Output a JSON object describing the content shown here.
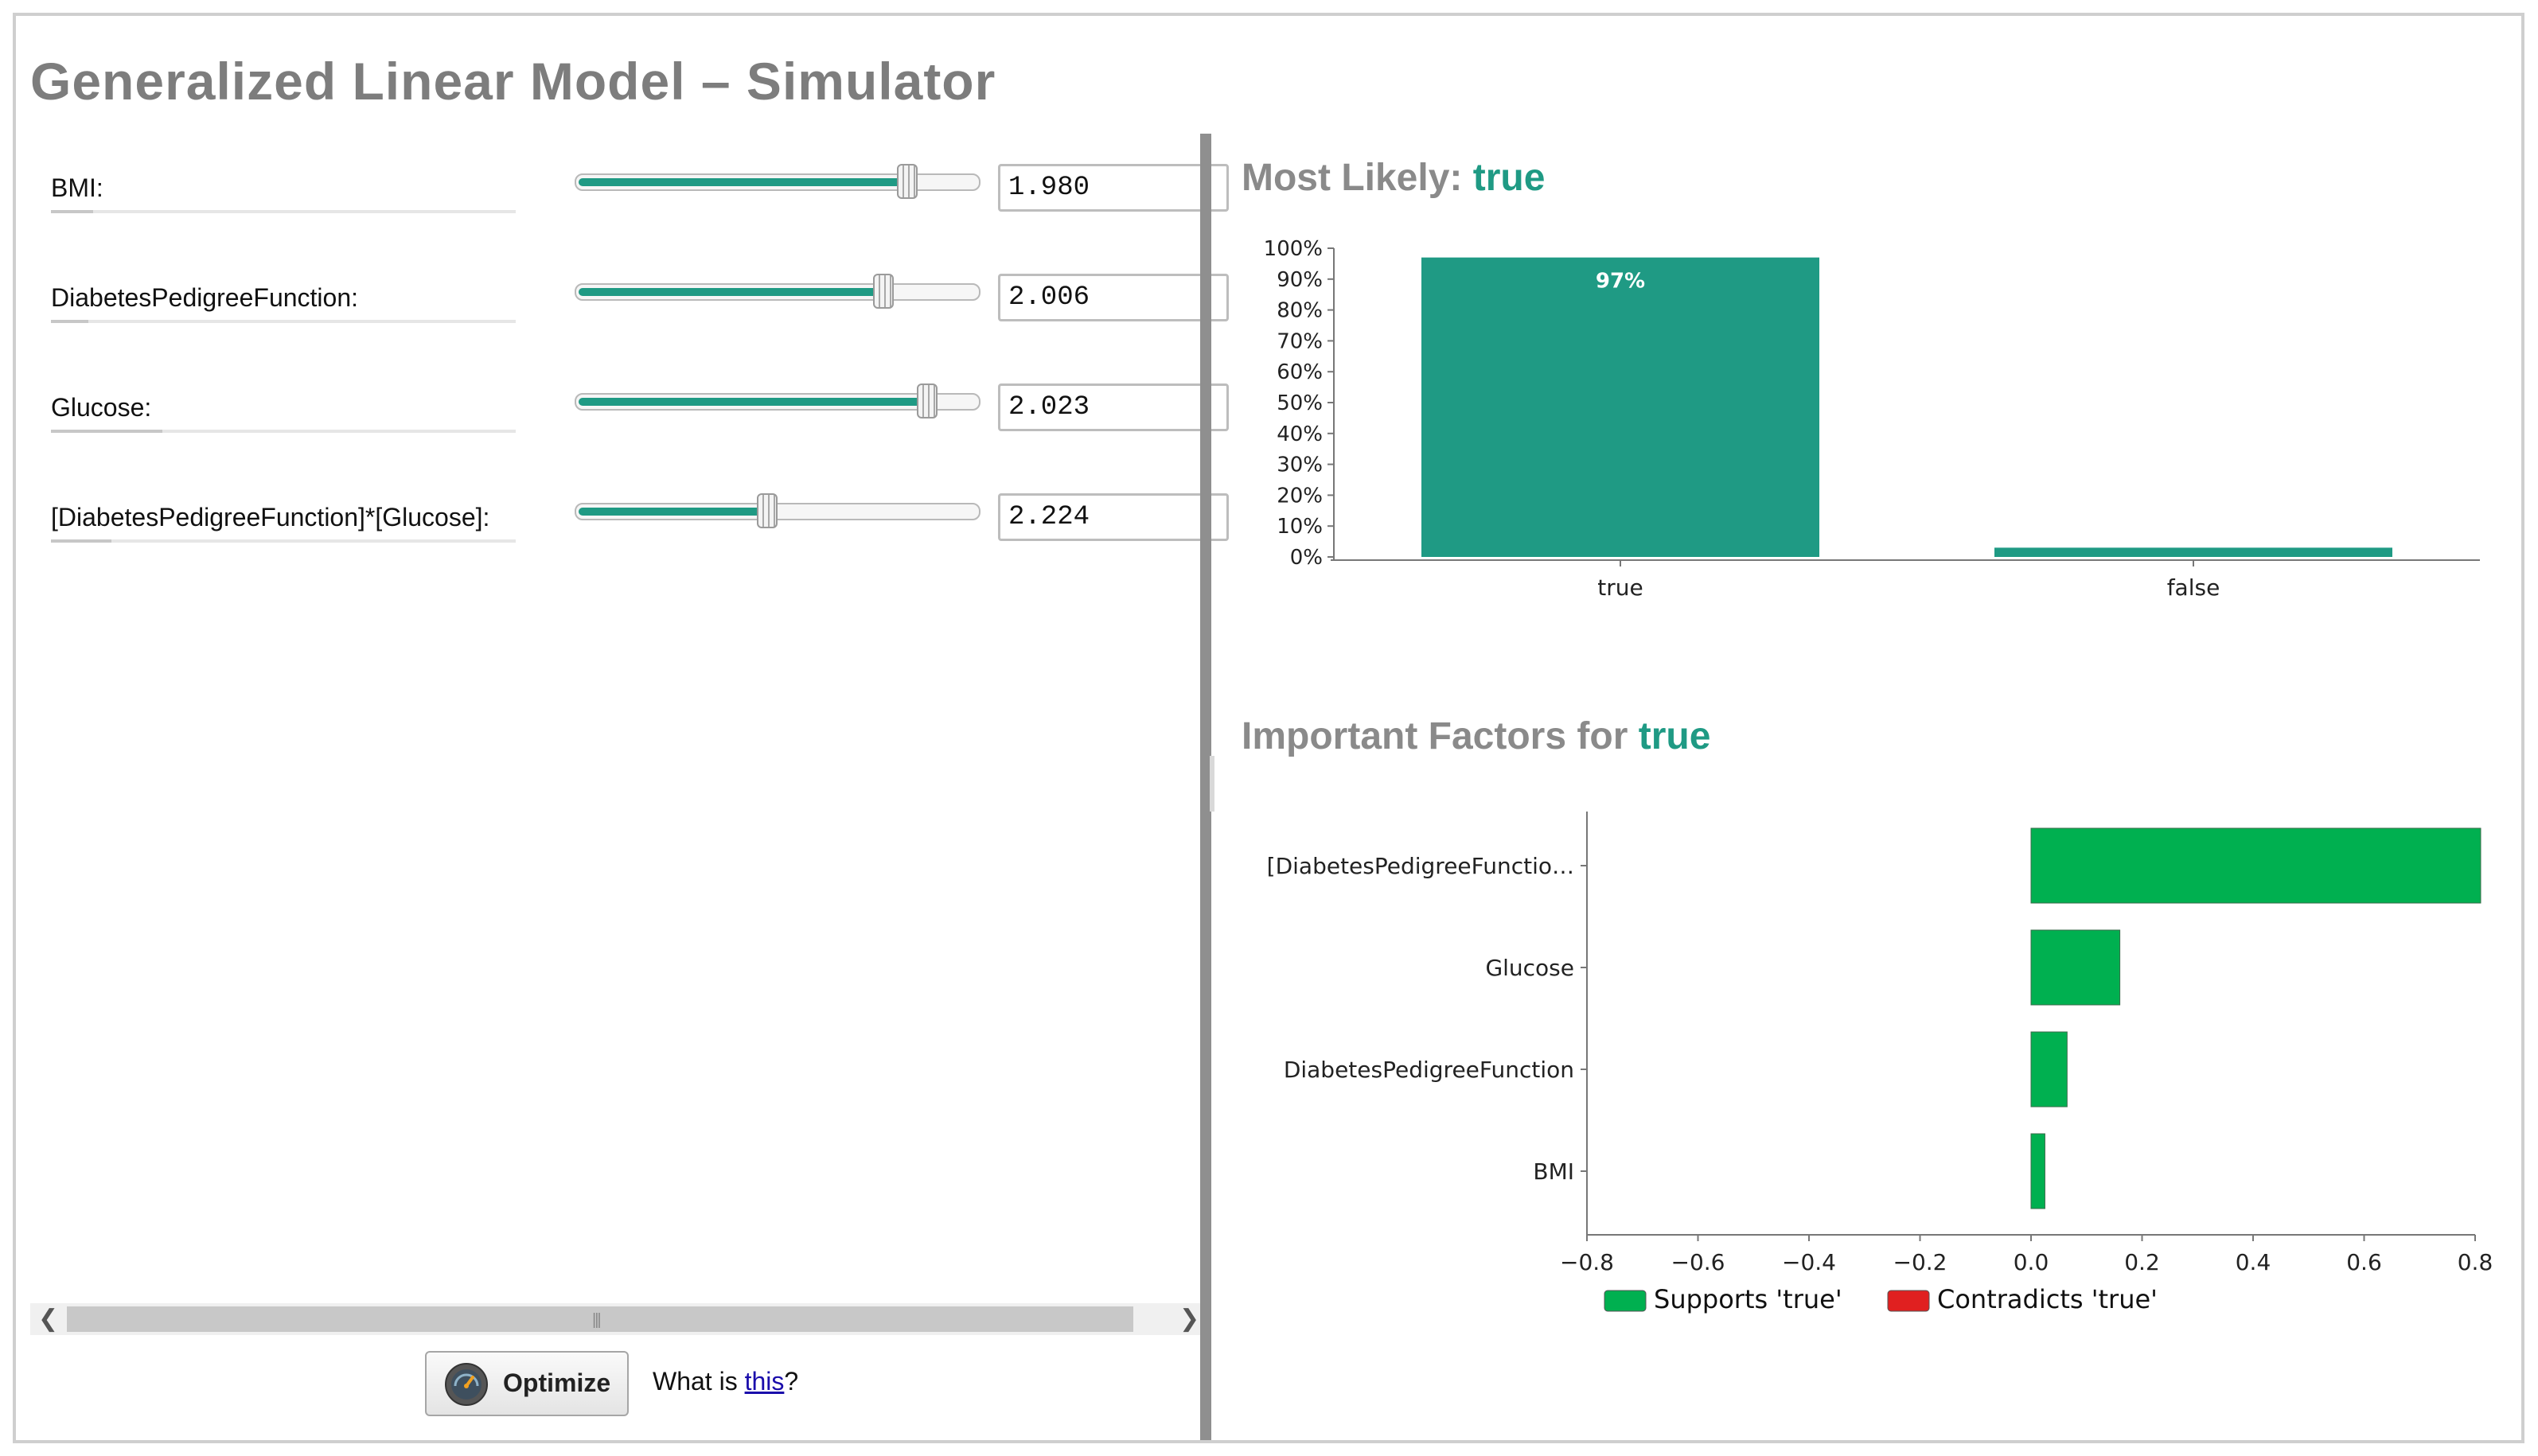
{
  "window": {
    "title": "Generalized Linear Model – Simulator"
  },
  "attributes": [
    {
      "label": "BMI:",
      "value": "1.980",
      "slider_fraction": 0.82,
      "underline_fraction": 0.09
    },
    {
      "label": "DiabetesPedigreeFunction:",
      "value": "2.006",
      "slider_fraction": 0.76,
      "underline_fraction": 0.08
    },
    {
      "label": "Glucose:",
      "value": "2.023",
      "slider_fraction": 0.87,
      "underline_fraction": 0.24
    },
    {
      "label": "[DiabetesPedigreeFunction]*[Glucose]:",
      "value": "2.224",
      "slider_fraction": 0.47,
      "underline_fraction": 0.13
    }
  ],
  "footer": {
    "optimize_label": "Optimize",
    "what_is_prefix": "What is ",
    "what_is_link": "this",
    "what_is_suffix": "?"
  },
  "prediction": {
    "title_prefix": "Most Likely: ",
    "title_value": "true"
  },
  "factors": {
    "title_prefix": "Important Factors for ",
    "title_value": "true"
  },
  "colors": {
    "accent": "#1f9a84",
    "supports": "#00b050",
    "contradicts": "#e02020",
    "title_gray": "#8a8a8a"
  },
  "icons": {
    "optimize": "speedometer-icon",
    "scroll_left": "chevron-left-icon",
    "scroll_right": "chevron-right-icon"
  },
  "chart_data": [
    {
      "type": "bar",
      "categories": [
        "true",
        "false"
      ],
      "values": [
        97,
        3
      ],
      "data_labels": [
        "97%",
        ""
      ],
      "yticks": [
        "0%",
        "10%",
        "20%",
        "30%",
        "40%",
        "50%",
        "60%",
        "70%",
        "80%",
        "90%",
        "100%"
      ],
      "ylim": [
        0,
        100
      ],
      "color": "#1f9a84",
      "grid": false
    },
    {
      "type": "bar",
      "orientation": "horizontal",
      "categories": [
        "[DiabetesPedigreeFunctio…",
        "Glucose",
        "DiabetesPedigreeFunction",
        "BMI"
      ],
      "values": [
        0.81,
        0.16,
        0.065,
        0.025
      ],
      "xticks": [
        "−0.8",
        "−0.6",
        "−0.4",
        "−0.2",
        "0.0",
        "0.2",
        "0.4",
        "0.6",
        "0.8"
      ],
      "xlim": [
        -0.8,
        0.8
      ],
      "legend": [
        "Supports 'true'",
        "Contradicts 'true'"
      ],
      "legend_position": "bottom-left",
      "grid": false
    }
  ]
}
